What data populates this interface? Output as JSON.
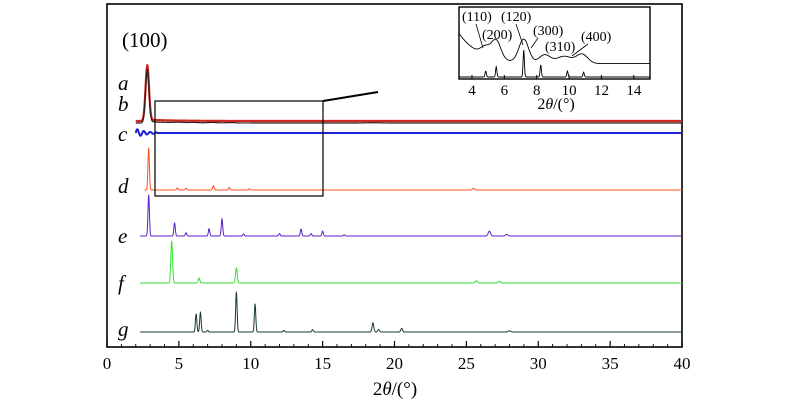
{
  "chart_data": {
    "type": "line",
    "xlabel": "2θ/(°)",
    "xlabel_parts": [
      "2",
      "θ",
      "/(°)"
    ],
    "xlim": [
      0,
      40
    ],
    "xticks": [
      0,
      5,
      10,
      15,
      20,
      25,
      30,
      35,
      40
    ],
    "yaxis": "stacked offset intensity, no tick labels",
    "main_peak_label": "(100)",
    "zoom_box": {
      "x_range": [
        3,
        15
      ],
      "traces_covered": [
        "b",
        "c",
        "d"
      ]
    },
    "series": [
      {
        "name": "a",
        "color": "#d0281e",
        "width": 2.2,
        "baseline": 0.93,
        "tail_decay": 0.2,
        "peaks": [
          [
            2.8,
            0.78,
            0.12
          ]
        ]
      },
      {
        "name": "b",
        "color": "#2a1d1d",
        "width": 1.2,
        "baseline": 0.93,
        "tail_decay": 0.2,
        "peaks": [
          [
            2.8,
            0.75,
            0.12
          ],
          [
            5.0,
            0.006,
            0.3
          ],
          [
            6.0,
            0.005,
            0.3
          ],
          [
            7.3,
            0.006,
            0.3
          ],
          [
            8.6,
            0.005,
            0.3
          ],
          [
            18.5,
            0.004,
            0.5
          ]
        ]
      },
      {
        "name": "c",
        "color": "#2020d6",
        "width": 2.0,
        "baseline": 0.0,
        "wiggle_until": 3.5,
        "peaks": []
      },
      {
        "name": "d",
        "color": "#ff5020",
        "width": 1.0,
        "baseline": 0.0,
        "peaks": [
          [
            2.9,
            1.0,
            0.05
          ],
          [
            4.9,
            0.05,
            0.05
          ],
          [
            5.5,
            0.04,
            0.05
          ],
          [
            7.4,
            0.1,
            0.05
          ],
          [
            8.5,
            0.06,
            0.05
          ],
          [
            9.9,
            0.03,
            0.05
          ],
          [
            25.5,
            0.04,
            0.08
          ]
        ]
      },
      {
        "name": "e",
        "color": "#5a1ec8",
        "width": 1.0,
        "baseline": 0.0,
        "peaks": [
          [
            2.9,
            1.0,
            0.05
          ],
          [
            4.7,
            0.32,
            0.05
          ],
          [
            5.5,
            0.08,
            0.05
          ],
          [
            7.1,
            0.18,
            0.05
          ],
          [
            8.0,
            0.42,
            0.05
          ],
          [
            9.5,
            0.05,
            0.05
          ],
          [
            12.0,
            0.06,
            0.05
          ],
          [
            13.5,
            0.17,
            0.05
          ],
          [
            14.2,
            0.06,
            0.05
          ],
          [
            15.0,
            0.12,
            0.05
          ],
          [
            16.5,
            0.03,
            0.05
          ],
          [
            26.6,
            0.12,
            0.08
          ],
          [
            27.8,
            0.04,
            0.08
          ]
        ]
      },
      {
        "name": "f",
        "color": "#30e030",
        "width": 1.0,
        "baseline": 0.0,
        "peaks": [
          [
            4.5,
            1.0,
            0.06
          ],
          [
            6.4,
            0.12,
            0.06
          ],
          [
            9.0,
            0.36,
            0.06
          ],
          [
            25.7,
            0.05,
            0.08
          ],
          [
            27.3,
            0.04,
            0.08
          ]
        ]
      },
      {
        "name": "g",
        "color": "#183838",
        "width": 1.0,
        "baseline": 0.0,
        "peaks": [
          [
            6.2,
            0.45,
            0.05
          ],
          [
            6.5,
            0.5,
            0.05
          ],
          [
            7.0,
            0.04,
            0.05
          ],
          [
            9.0,
            1.0,
            0.05
          ],
          [
            10.3,
            0.7,
            0.05
          ],
          [
            12.3,
            0.04,
            0.05
          ],
          [
            14.3,
            0.06,
            0.05
          ],
          [
            18.5,
            0.23,
            0.06
          ],
          [
            18.9,
            0.06,
            0.06
          ],
          [
            20.5,
            0.09,
            0.06
          ],
          [
            28.0,
            0.03,
            0.08
          ]
        ]
      }
    ],
    "inset": {
      "xlabel": "2θ/(°)",
      "xlabel_parts": [
        "2",
        "θ",
        "/(°)"
      ],
      "xlim": [
        3.2,
        15
      ],
      "xticks": [
        4,
        6,
        8,
        10,
        12,
        14
      ],
      "annotations": [
        "(110)",
        "(120)",
        "(200)",
        "(300)",
        "(310)",
        "(400)"
      ],
      "series": [
        {
          "name": "b-zoom",
          "color": "#000000",
          "peaks": [
            [
              4.85,
              0.16,
              0.3
            ],
            [
              5.5,
              0.33,
              0.28
            ],
            [
              7.2,
              0.42,
              0.3
            ],
            [
              8.5,
              0.15,
              0.35
            ],
            [
              9.7,
              0.13,
              0.45
            ],
            [
              10.8,
              0.17,
              0.35
            ]
          ]
        },
        {
          "name": "d-zoom",
          "color": "#000000",
          "peaks": [
            [
              4.85,
              0.1,
              0.04
            ],
            [
              5.5,
              0.17,
              0.04
            ],
            [
              7.2,
              0.45,
              0.04
            ],
            [
              8.25,
              0.2,
              0.04
            ],
            [
              9.9,
              0.1,
              0.04
            ],
            [
              10.9,
              0.08,
              0.04
            ]
          ]
        }
      ]
    }
  }
}
